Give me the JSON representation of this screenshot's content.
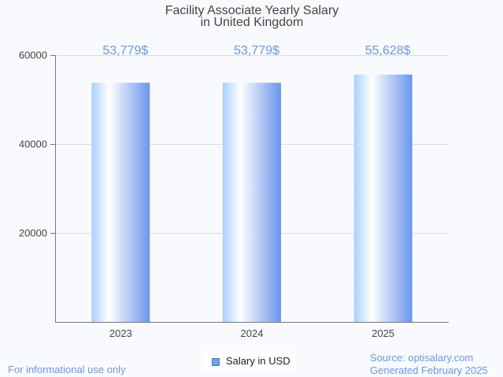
{
  "chart_data": {
    "type": "bar",
    "title": "Facility Associate Yearly Salary",
    "subtitle": "in United Kingdom",
    "categories": [
      "2023",
      "2024",
      "2025"
    ],
    "values": [
      53779,
      53779,
      55628
    ],
    "value_labels": [
      "53,779$",
      "53,779$",
      "55,628$"
    ],
    "yticks": [
      20000,
      40000,
      60000
    ],
    "ytick_labels": [
      "20000",
      "40000",
      "60000"
    ],
    "ylim": [
      0,
      60000
    ],
    "xlabel": "",
    "ylabel": "",
    "grid": true,
    "legend": {
      "label": "Salary in USD",
      "position": "bottom-center"
    }
  },
  "colors": {
    "accent": "#6b97e0",
    "bar_light": "#a8d0ff",
    "bar_dark": "#6b95ec"
  },
  "footer": {
    "note": "For informational use only",
    "source": "Source: optisalary.com",
    "generated": "Generated February 2025"
  }
}
